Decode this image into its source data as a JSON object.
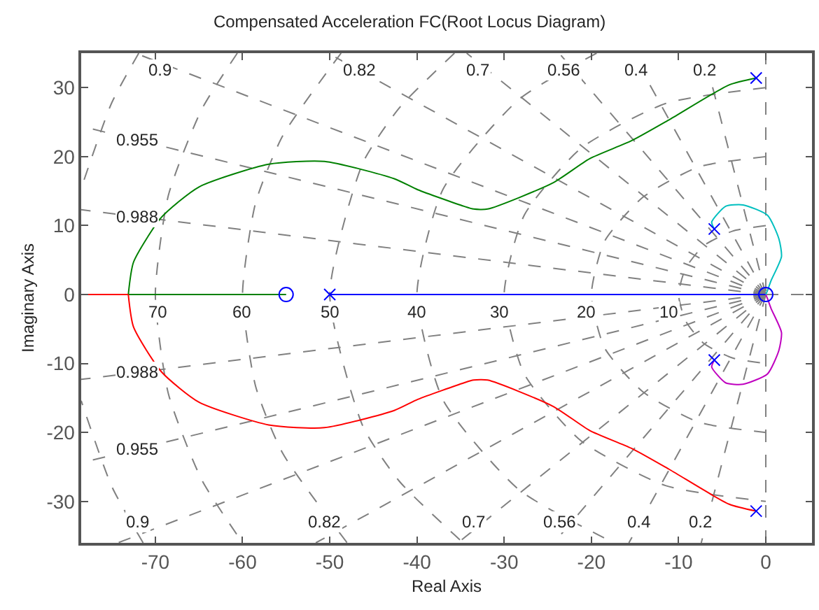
{
  "chart_data": {
    "type": "line",
    "title": "Compensated Acceleration FC(Root Locus Diagram)",
    "xlabel": "Real Axis",
    "ylabel": "Imaginary Axis",
    "xlim": [
      -78.5,
      5.3
    ],
    "ylim": [
      -36,
      35
    ],
    "xticks": [
      -70,
      -60,
      -50,
      -40,
      -30,
      -20,
      -10,
      0
    ],
    "yticks": [
      -30,
      -20,
      -10,
      0,
      10,
      20,
      30
    ],
    "marker": "none",
    "line_style": "solid",
    "series": [
      {
        "color": "#808080",
        "line_style": "dashed",
        "x": [
          0,
          -7.1
        ],
        "values": [
          0,
          35
        ]
      },
      {
        "color": "#808080",
        "line_style": "dashed",
        "x": [
          0,
          -7.4
        ],
        "values": [
          0,
          -36
        ]
      },
      {
        "color": "#808080",
        "line_style": "dashed",
        "x": [
          0,
          -15.3
        ],
        "values": [
          0,
          35
        ]
      },
      {
        "color": "#808080",
        "line_style": "dashed",
        "x": [
          0,
          -15.7
        ],
        "values": [
          0,
          -36
        ]
      },
      {
        "color": "#808080",
        "line_style": "dashed",
        "x": [
          0,
          -23.7
        ],
        "values": [
          0,
          35
        ]
      },
      {
        "color": "#808080",
        "line_style": "dashed",
        "x": [
          0,
          -24.3
        ],
        "values": [
          0,
          -36
        ]
      },
      {
        "color": "#808080",
        "line_style": "dashed",
        "x": [
          0,
          -34.3
        ],
        "values": [
          0,
          35
        ]
      },
      {
        "color": "#808080",
        "line_style": "dashed",
        "x": [
          0,
          -35.3
        ],
        "values": [
          0,
          -36
        ]
      },
      {
        "color": "#808080",
        "line_style": "dashed",
        "x": [
          0,
          -50.2
        ],
        "values": [
          0,
          35
        ]
      },
      {
        "color": "#808080",
        "line_style": "dashed",
        "x": [
          0,
          -51.6
        ],
        "values": [
          0,
          -36
        ]
      },
      {
        "color": "#808080",
        "line_style": "dashed",
        "x": [
          0,
          -72.3
        ],
        "values": [
          0,
          35
        ]
      },
      {
        "color": "#808080",
        "line_style": "dashed",
        "x": [
          0,
          -74.3
        ],
        "values": [
          0,
          -36
        ]
      },
      {
        "color": "#808080",
        "line_style": "dashed",
        "x": [
          0,
          -78.5
        ],
        "values": [
          0,
          24.4
        ]
      },
      {
        "color": "#808080",
        "line_style": "dashed",
        "x": [
          0,
          -78.5
        ],
        "values": [
          0,
          -24.4
        ]
      },
      {
        "color": "#808080",
        "line_style": "dashed",
        "x": [
          0,
          -78.5
        ],
        "values": [
          0,
          12.3
        ]
      },
      {
        "color": "#808080",
        "line_style": "dashed",
        "x": [
          0,
          -78.5
        ],
        "values": [
          0,
          -12.3
        ]
      },
      {
        "color": "#808080",
        "line_style": "dashed",
        "x": [
          0,
          0
        ],
        "values": [
          -36,
          35
        ]
      },
      {
        "color": "#808080",
        "line_style": "dashed",
        "x": [
          0,
          5.3
        ],
        "values": [
          0,
          0
        ]
      },
      {
        "color": "#808080",
        "line_style": "dashed",
        "x": [
          0,
          -3.8,
          -7.1,
          -9.2,
          -10,
          -9.2,
          -7.1,
          -3.8,
          0
        ],
        "values": [
          10,
          9.2,
          7.1,
          3.8,
          0,
          -3.8,
          -7.1,
          -9.2,
          -10
        ]
      },
      {
        "color": "#808080",
        "line_style": "dashed",
        "x": [
          0,
          -7.7,
          -14.1,
          -18.5,
          -20,
          -18.5,
          -14.1,
          -7.7,
          0
        ],
        "values": [
          20,
          18.5,
          14.1,
          7.7,
          0,
          -7.7,
          -14.1,
          -18.5,
          -20
        ]
      },
      {
        "color": "#808080",
        "line_style": "dashed",
        "x": [
          0,
          -11.5,
          -21.2,
          -27.7,
          -30,
          -27.7,
          -21.2,
          -11.5,
          0
        ],
        "values": [
          30,
          27.7,
          21.2,
          11.5,
          0,
          -11.5,
          -21.2,
          -27.7,
          -30
        ]
      },
      {
        "color": "#808080",
        "line_style": "dashed",
        "x": [
          -19.4,
          -28.3,
          -37,
          -40,
          -37,
          -28.3,
          -17.4
        ],
        "values": [
          35,
          28.3,
          15.3,
          0,
          -15.3,
          -28.3,
          -36
        ]
      },
      {
        "color": "#808080",
        "line_style": "dashed",
        "x": [
          -35.7,
          -42,
          -46.2,
          -50,
          -46.2,
          -42,
          -34.7
        ],
        "values": [
          35,
          27.1,
          19.1,
          0,
          -19.1,
          -27.1,
          -36
        ]
      },
      {
        "color": "#808080",
        "line_style": "dashed",
        "x": [
          -48.7,
          -55.4,
          -58.5,
          -60,
          -58.5,
          -55.4,
          -48
        ],
        "values": [
          35,
          23,
          13.3,
          0,
          -13.3,
          -23,
          -36
        ]
      },
      {
        "color": "#808080",
        "line_style": "dashed",
        "x": [
          -60.6,
          -64.7,
          -68.5,
          -70,
          -68.5,
          -64.7,
          -60
        ],
        "values": [
          35,
          26.8,
          14.4,
          0,
          -14.4,
          -26.8,
          -36
        ]
      },
      {
        "color": "#808080",
        "line_style": "dashed",
        "x": [
          -71.9,
          -75,
          -78.5
        ],
        "values": [
          35,
          27.8,
          15.4
        ]
      },
      {
        "color": "#808080",
        "line_style": "dashed",
        "x": [
          -71.4,
          -75,
          -78.5
        ],
        "values": [
          -36,
          -27.8,
          -15.4
        ]
      },
      {
        "color": "#008000",
        "x": [
          -1.1,
          -4.2,
          -11,
          -15.4,
          -20.2,
          -24.4,
          -31.9,
          -33.5,
          -34.6,
          -39.9,
          -42.6,
          -50.6,
          -57,
          -65,
          -69.3,
          -72.5,
          -73.1
        ],
        "values": [
          31.4,
          30.4,
          25.4,
          22.3,
          19.7,
          16.2,
          12.4,
          12.4,
          12.8,
          15.2,
          16.8,
          19.3,
          18.9,
          15.6,
          11.2,
          4.7,
          0
        ]
      },
      {
        "color": "#008000",
        "x": [
          -73.1,
          -55
        ],
        "values": [
          0,
          0
        ]
      },
      {
        "color": "#ff0000",
        "x": [
          -1.1,
          -4.2,
          -11,
          -15.4,
          -20.2,
          -24.4,
          -31.9,
          -33.5,
          -34.6,
          -39.9,
          -42.6,
          -50.6,
          -57,
          -65,
          -69.3,
          -72.5,
          -73.1
        ],
        "values": [
          -31.4,
          -30.4,
          -25.4,
          -22.3,
          -19.7,
          -16.2,
          -12.4,
          -12.4,
          -12.8,
          -15.2,
          -16.8,
          -19.3,
          -18.9,
          -15.6,
          -11.2,
          -4.7,
          0
        ]
      },
      {
        "color": "#ff0000",
        "x": [
          -73.1,
          -78.5
        ],
        "values": [
          0,
          0
        ]
      },
      {
        "color": "#0000ff",
        "x": [
          -50,
          0
        ],
        "values": [
          0,
          0
        ]
      },
      {
        "color": "#00bfbf",
        "x": [
          -5.9,
          -6.2,
          -4.6,
          -2.6,
          0.2,
          1.5,
          1.8,
          0.6,
          0.2,
          0
        ],
        "values": [
          9.5,
          10.5,
          12.8,
          13,
          11.5,
          8.1,
          5.5,
          2,
          0.6,
          0
        ]
      },
      {
        "color": "#bf00bf",
        "x": [
          -5.9,
          -6.2,
          -4.6,
          -2.6,
          0.2,
          1.5,
          1.8,
          0.6,
          0.2,
          0
        ],
        "values": [
          -9.5,
          -10.5,
          -12.8,
          -13,
          -11.5,
          -8.1,
          -5.5,
          -2,
          -0.6,
          0
        ]
      },
      {
        "type": "scatter",
        "marker": "cross",
        "color": "#0000ff",
        "x": [
          -1.1,
          -1.1,
          -5.9,
          -5.9,
          -50
        ],
        "values": [
          31.4,
          -31.4,
          9.5,
          -9.5,
          0
        ]
      },
      {
        "type": "scatter",
        "marker": "circle",
        "color": "#0000ff",
        "x": [
          -55,
          0
        ],
        "values": [
          0,
          0
        ]
      }
    ],
    "annotations": [
      {
        "text": "0.9",
        "x": -69.5,
        "y": 32.5
      },
      {
        "text": "0.82",
        "x": -46.6,
        "y": 32.5
      },
      {
        "text": "0.7",
        "x": -33,
        "y": 32.5
      },
      {
        "text": "0.56",
        "x": -23.1,
        "y": 32.5
      },
      {
        "text": "0.4",
        "x": -14.9,
        "y": 32.5
      },
      {
        "text": "0.2",
        "x": -7.05,
        "y": 32.5
      },
      {
        "text": "0.955",
        "x": -72,
        "y": 22.4
      },
      {
        "text": "0.988",
        "x": -72,
        "y": 11.3
      },
      {
        "text": "0.988",
        "x": -72,
        "y": -11.3
      },
      {
        "text": "0.955",
        "x": -72,
        "y": -22.4
      },
      {
        "text": "0.9",
        "x": -72,
        "y": -33
      },
      {
        "text": "0.82",
        "x": -50.5,
        "y": -33
      },
      {
        "text": "0.7",
        "x": -33.5,
        "y": -33
      },
      {
        "text": "0.56",
        "x": -23.6,
        "y": -33
      },
      {
        "text": "0.4",
        "x": -14.5,
        "y": -33
      },
      {
        "text": "0.2",
        "x": -7.5,
        "y": -33
      },
      {
        "text": "70",
        "x": -69.6,
        "y": -2.6
      },
      {
        "text": "60",
        "x": -60,
        "y": -2.6
      },
      {
        "text": "50",
        "x": -50,
        "y": -2.6
      },
      {
        "text": "40",
        "x": -40,
        "y": -2.6
      },
      {
        "text": "30",
        "x": -30.5,
        "y": -2.6
      },
      {
        "text": "20",
        "x": -20.5,
        "y": -2.6
      },
      {
        "text": "10",
        "x": -11,
        "y": -2.6
      }
    ]
  }
}
